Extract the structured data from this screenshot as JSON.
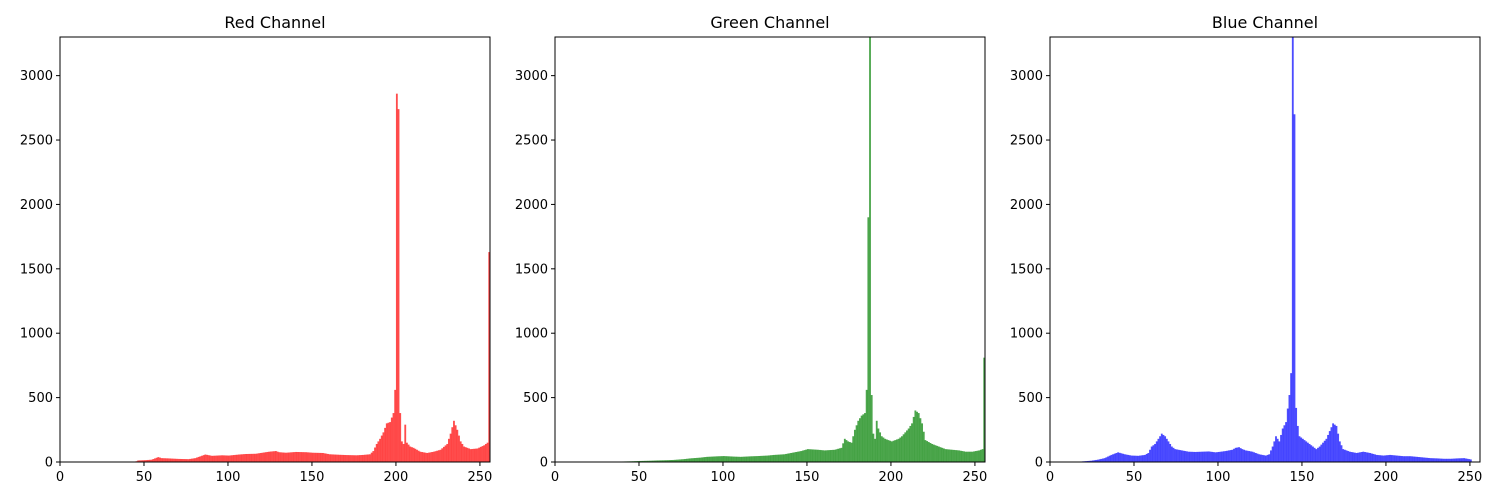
{
  "chart_data": [
    {
      "type": "bar",
      "title": "Red Channel",
      "color": "#ff0000",
      "xlim": [
        0,
        256
      ],
      "ylim": [
        0,
        3300
      ],
      "xticks": [
        0,
        50,
        100,
        150,
        200,
        250
      ],
      "yticks": [
        0,
        500,
        1000,
        1500,
        2000,
        2500,
        3000
      ],
      "grid": false,
      "bins": [
        [
          0,
          0
        ],
        [
          8,
          0
        ],
        [
          16,
          0
        ],
        [
          24,
          0
        ],
        [
          32,
          0
        ],
        [
          40,
          0
        ],
        [
          44,
          0
        ],
        [
          46,
          12
        ],
        [
          50,
          14
        ],
        [
          54,
          18
        ],
        [
          58,
          38
        ],
        [
          60,
          30
        ],
        [
          64,
          28
        ],
        [
          70,
          24
        ],
        [
          76,
          22
        ],
        [
          80,
          30
        ],
        [
          86,
          58
        ],
        [
          90,
          48
        ],
        [
          96,
          52
        ],
        [
          100,
          50
        ],
        [
          106,
          58
        ],
        [
          110,
          62
        ],
        [
          116,
          64
        ],
        [
          120,
          72
        ],
        [
          124,
          80
        ],
        [
          128,
          85
        ],
        [
          130,
          76
        ],
        [
          134,
          72
        ],
        [
          140,
          78
        ],
        [
          146,
          76
        ],
        [
          150,
          72
        ],
        [
          156,
          70
        ],
        [
          160,
          60
        ],
        [
          166,
          56
        ],
        [
          170,
          54
        ],
        [
          176,
          52
        ],
        [
          180,
          55
        ],
        [
          184,
          60
        ],
        [
          186,
          85
        ],
        [
          188,
          140
        ],
        [
          190,
          180
        ],
        [
          192,
          230
        ],
        [
          194,
          300
        ],
        [
          196,
          310
        ],
        [
          198,
          380
        ],
        [
          199,
          560
        ],
        [
          200,
          2860
        ],
        [
          201,
          2740
        ],
        [
          202,
          380
        ],
        [
          203,
          160
        ],
        [
          204,
          140
        ],
        [
          205,
          290
        ],
        [
          206,
          150
        ],
        [
          208,
          120
        ],
        [
          210,
          110
        ],
        [
          214,
          80
        ],
        [
          218,
          70
        ],
        [
          222,
          80
        ],
        [
          226,
          95
        ],
        [
          230,
          140
        ],
        [
          232,
          220
        ],
        [
          234,
          320
        ],
        [
          236,
          250
        ],
        [
          238,
          160
        ],
        [
          240,
          120
        ],
        [
          244,
          100
        ],
        [
          248,
          105
        ],
        [
          252,
          130
        ],
        [
          254,
          150
        ],
        [
          255,
          1630
        ]
      ]
    },
    {
      "type": "bar",
      "title": "Green Channel",
      "color": "#008000",
      "xlim": [
        0,
        256
      ],
      "ylim": [
        0,
        3300
      ],
      "xticks": [
        0,
        50,
        100,
        150,
        200,
        250
      ],
      "yticks": [
        0,
        500,
        1000,
        1500,
        2000,
        2500,
        3000
      ],
      "grid": false,
      "bins": [
        [
          0,
          0
        ],
        [
          10,
          0
        ],
        [
          20,
          0
        ],
        [
          30,
          0
        ],
        [
          40,
          4
        ],
        [
          46,
          6
        ],
        [
          50,
          8
        ],
        [
          56,
          10
        ],
        [
          60,
          12
        ],
        [
          66,
          14
        ],
        [
          70,
          16
        ],
        [
          76,
          22
        ],
        [
          80,
          28
        ],
        [
          86,
          34
        ],
        [
          90,
          40
        ],
        [
          96,
          44
        ],
        [
          100,
          46
        ],
        [
          106,
          42
        ],
        [
          110,
          40
        ],
        [
          116,
          44
        ],
        [
          120,
          46
        ],
        [
          126,
          50
        ],
        [
          130,
          55
        ],
        [
          136,
          60
        ],
        [
          140,
          70
        ],
        [
          146,
          85
        ],
        [
          150,
          100
        ],
        [
          156,
          95
        ],
        [
          160,
          90
        ],
        [
          166,
          95
        ],
        [
          170,
          110
        ],
        [
          172,
          180
        ],
        [
          174,
          160
        ],
        [
          176,
          150
        ],
        [
          178,
          250
        ],
        [
          180,
          320
        ],
        [
          182,
          360
        ],
        [
          184,
          380
        ],
        [
          185,
          560
        ],
        [
          186,
          1900
        ],
        [
          187,
          3300
        ],
        [
          188,
          520
        ],
        [
          189,
          220
        ],
        [
          190,
          180
        ],
        [
          191,
          320
        ],
        [
          192,
          260
        ],
        [
          194,
          200
        ],
        [
          196,
          180
        ],
        [
          198,
          170
        ],
        [
          200,
          160
        ],
        [
          204,
          180
        ],
        [
          206,
          200
        ],
        [
          208,
          230
        ],
        [
          210,
          260
        ],
        [
          212,
          300
        ],
        [
          214,
          400
        ],
        [
          216,
          380
        ],
        [
          218,
          300
        ],
        [
          220,
          170
        ],
        [
          224,
          140
        ],
        [
          228,
          120
        ],
        [
          232,
          100
        ],
        [
          236,
          95
        ],
        [
          240,
          90
        ],
        [
          244,
          80
        ],
        [
          248,
          80
        ],
        [
          252,
          90
        ],
        [
          254,
          100
        ],
        [
          255,
          810
        ]
      ]
    },
    {
      "type": "bar",
      "title": "Blue Channel",
      "color": "#0000ff",
      "xlim": [
        0,
        256
      ],
      "ylim": [
        0,
        3300
      ],
      "xticks": [
        0,
        50,
        100,
        150,
        200,
        250
      ],
      "yticks": [
        0,
        500,
        1000,
        1500,
        2000,
        2500,
        3000
      ],
      "grid": false,
      "bins": [
        [
          0,
          0
        ],
        [
          10,
          0
        ],
        [
          16,
          2
        ],
        [
          20,
          6
        ],
        [
          24,
          10
        ],
        [
          28,
          18
        ],
        [
          32,
          30
        ],
        [
          36,
          55
        ],
        [
          40,
          75
        ],
        [
          44,
          60
        ],
        [
          48,
          50
        ],
        [
          52,
          48
        ],
        [
          56,
          55
        ],
        [
          58,
          70
        ],
        [
          60,
          120
        ],
        [
          62,
          140
        ],
        [
          64,
          180
        ],
        [
          66,
          220
        ],
        [
          68,
          200
        ],
        [
          70,
          160
        ],
        [
          72,
          120
        ],
        [
          74,
          100
        ],
        [
          78,
          90
        ],
        [
          82,
          80
        ],
        [
          86,
          78
        ],
        [
          90,
          80
        ],
        [
          94,
          82
        ],
        [
          98,
          75
        ],
        [
          100,
          78
        ],
        [
          104,
          85
        ],
        [
          108,
          95
        ],
        [
          110,
          110
        ],
        [
          112,
          115
        ],
        [
          114,
          100
        ],
        [
          116,
          90
        ],
        [
          120,
          80
        ],
        [
          124,
          60
        ],
        [
          128,
          50
        ],
        [
          130,
          60
        ],
        [
          132,
          120
        ],
        [
          134,
          200
        ],
        [
          136,
          160
        ],
        [
          138,
          260
        ],
        [
          140,
          310
        ],
        [
          142,
          520
        ],
        [
          143,
          690
        ],
        [
          144,
          3300
        ],
        [
          145,
          2700
        ],
        [
          146,
          420
        ],
        [
          147,
          280
        ],
        [
          148,
          200
        ],
        [
          150,
          180
        ],
        [
          152,
          160
        ],
        [
          154,
          140
        ],
        [
          156,
          120
        ],
        [
          158,
          100
        ],
        [
          160,
          120
        ],
        [
          162,
          150
        ],
        [
          164,
          180
        ],
        [
          166,
          240
        ],
        [
          168,
          300
        ],
        [
          170,
          280
        ],
        [
          172,
          160
        ],
        [
          174,
          100
        ],
        [
          178,
          80
        ],
        [
          182,
          70
        ],
        [
          186,
          80
        ],
        [
          190,
          70
        ],
        [
          194,
          55
        ],
        [
          198,
          50
        ],
        [
          202,
          55
        ],
        [
          206,
          50
        ],
        [
          210,
          45
        ],
        [
          214,
          45
        ],
        [
          218,
          40
        ],
        [
          222,
          35
        ],
        [
          226,
          30
        ],
        [
          230,
          28
        ],
        [
          234,
          25
        ],
        [
          238,
          25
        ],
        [
          242,
          28
        ],
        [
          246,
          30
        ],
        [
          250,
          20
        ]
      ]
    }
  ]
}
